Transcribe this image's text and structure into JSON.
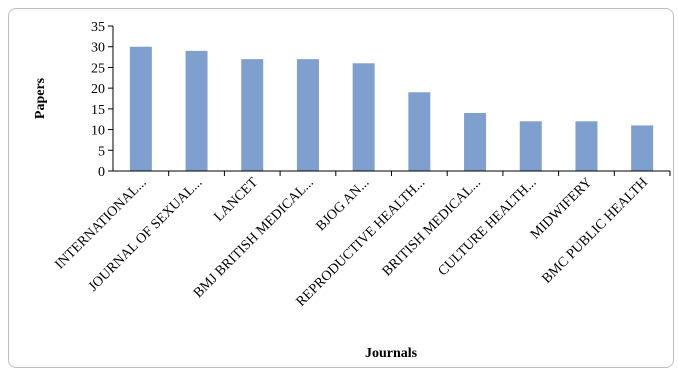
{
  "chart_data": {
    "type": "bar",
    "title": "",
    "xlabel": "Journals",
    "ylabel": "Papers",
    "ylim": [
      0,
      35
    ],
    "yticks": [
      0,
      5,
      10,
      15,
      20,
      25,
      30,
      35
    ],
    "categories": [
      "INTERNATIONAL...",
      "JOURNAL OF SEXUAL...",
      "LANCET",
      "BMJ BRITISH MEDICAL...",
      "BJOG AN...",
      "REPRODUCTIVE HEALTH...",
      "BRITISH MEDICAL...",
      "CULTURE HEALTH...",
      "MIDWIFERY",
      "BMC PUBLIC HEALTH"
    ],
    "values": [
      30,
      29,
      27,
      27,
      26,
      19,
      14,
      12,
      12,
      11
    ],
    "bar_color": "#7f9fcf",
    "grid": false
  }
}
